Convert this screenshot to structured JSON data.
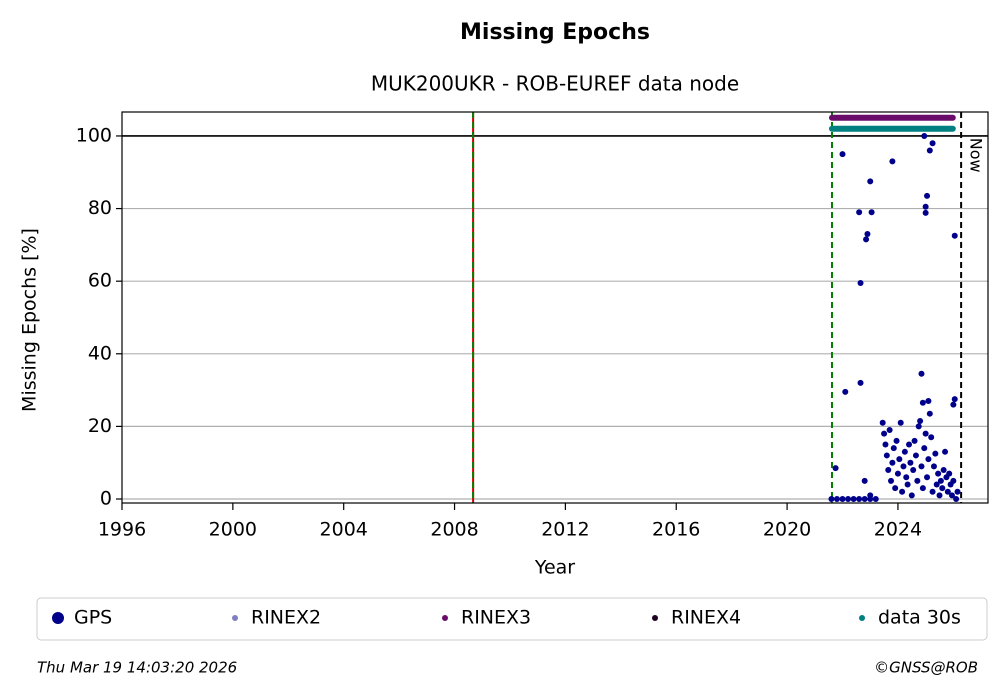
{
  "chart_data": {
    "type": "scatter",
    "title": "Missing Epochs",
    "subtitle": "MUK200UKR - ROB-EUREF data node",
    "x_label": "Year",
    "y_label": "Missing Epochs [%]",
    "xlim": [
      1996,
      2027.25
    ],
    "ylim": [
      -1.1,
      106.6
    ],
    "xticks": [
      1996,
      2000,
      2004,
      2008,
      2012,
      2016,
      2020,
      2024
    ],
    "yticks": [
      0,
      20,
      40,
      60,
      80,
      100
    ],
    "grid": true,
    "hlines": [
      {
        "y": 100,
        "color": "#000000",
        "style": "solid"
      }
    ],
    "vlines": [
      {
        "x": 2008.67,
        "color": "#cc0000",
        "style": "solid"
      },
      {
        "x": 2008.67,
        "color": "#008000",
        "style": "dashed"
      },
      {
        "x": 2021.62,
        "color": "#008000",
        "style": "dashed"
      },
      {
        "x": 2026.28,
        "color": "#000000",
        "style": "dashed"
      }
    ],
    "annotations": [
      {
        "text": "Now",
        "x": 2026.28,
        "y": 98
      }
    ],
    "series": [
      {
        "name": "GPS",
        "color": "#00008b",
        "mode": "points",
        "x": [
          2021.6,
          2021.8,
          2022.0,
          2022.2,
          2022.4,
          2022.6,
          2022.8,
          2023.0,
          2023.2,
          2021.75,
          2022.0,
          2022.1,
          2022.6,
          2022.65,
          2022.65,
          2022.8,
          2022.85,
          2022.9,
          2023.0,
          2023.05,
          2023.0,
          2023.8,
          2024.95,
          2025.0,
          2025.0,
          2025.05,
          2025.15,
          2025.25,
          2024.85,
          2024.9,
          2025.1,
          2026.05,
          2026.0,
          2026.05,
          2025.7,
          2023.45,
          2023.5,
          2023.55,
          2023.6,
          2023.65,
          2023.7,
          2023.75,
          2023.8,
          2023.85,
          2023.9,
          2023.95,
          2024.0,
          2024.05,
          2024.1,
          2024.15,
          2024.2,
          2024.25,
          2024.3,
          2024.35,
          2024.4,
          2024.45,
          2024.5,
          2024.55,
          2024.6,
          2024.65,
          2024.7,
          2024.75,
          2024.8,
          2024.85,
          2024.9,
          2024.95,
          2025.0,
          2025.05,
          2025.1,
          2025.15,
          2025.2,
          2025.25,
          2025.3,
          2025.35,
          2025.4,
          2025.45,
          2025.5,
          2025.55,
          2025.6,
          2025.65,
          2025.75,
          2025.8,
          2025.85,
          2025.9,
          2025.95,
          2026.0,
          2026.1,
          2026.15
        ],
        "values": [
          0,
          0,
          0,
          0,
          0,
          0,
          0,
          0,
          0,
          8.5,
          95,
          29.5,
          79,
          59.5,
          32,
          5,
          71.5,
          73,
          87.5,
          79,
          1,
          93,
          100,
          80.5,
          78.8,
          83.5,
          96,
          98,
          34.5,
          26.5,
          27,
          72.5,
          26,
          27.5,
          13,
          21,
          18,
          15,
          12,
          8,
          19,
          5,
          10,
          14,
          3,
          16,
          7,
          11,
          21,
          2,
          9,
          13,
          6,
          4,
          15,
          10,
          1,
          8,
          16,
          12,
          5,
          20,
          21.5,
          9,
          3,
          14,
          18,
          6,
          11,
          23.5,
          17,
          2,
          9,
          12.5,
          4,
          7,
          1,
          5,
          3,
          8,
          6,
          2,
          7,
          4,
          1,
          5,
          0,
          2
        ]
      },
      {
        "name": "RINEX2",
        "color": "#8080c0",
        "mode": "points",
        "x": [],
        "values": []
      },
      {
        "name": "RINEX3",
        "color": "#6a0d6a",
        "mode": "band",
        "x": [
          2021.62,
          2025.98
        ],
        "values": [
          105,
          105
        ]
      },
      {
        "name": "RINEX4",
        "color": "#200020",
        "mode": "points",
        "x": [],
        "values": []
      },
      {
        "name": "data 30s",
        "color": "#008080",
        "mode": "band",
        "x": [
          2021.62,
          2025.98
        ],
        "values": [
          102,
          102
        ]
      }
    ],
    "footer_left": "Thu Mar 19 14:03:20 2026",
    "footer_right": "©GNSS@ROB"
  }
}
